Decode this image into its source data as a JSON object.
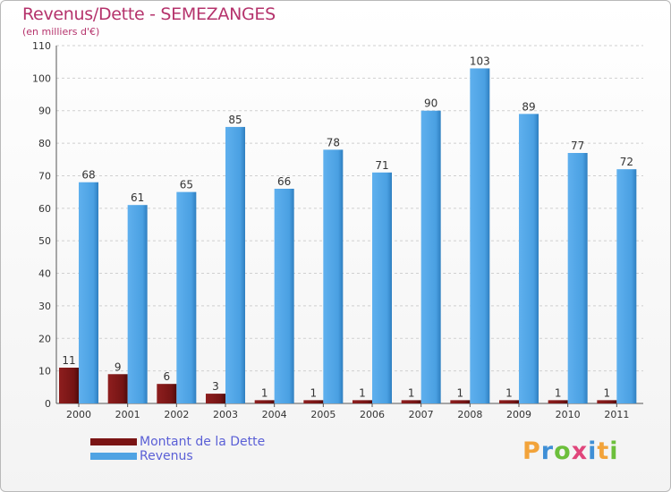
{
  "chart_data": {
    "type": "bar",
    "title": "Revenus/Dette - SEMEZANGES",
    "subtitle": "(en milliers d'€)",
    "categories": [
      "2000",
      "2001",
      "2002",
      "2003",
      "2004",
      "2005",
      "2006",
      "2007",
      "2008",
      "2009",
      "2010",
      "2011"
    ],
    "series": [
      {
        "name": "Montant de la Dette",
        "color": "#7a1414",
        "values": [
          11,
          9,
          6,
          3,
          1,
          1,
          1,
          1,
          1,
          1,
          1,
          1
        ]
      },
      {
        "name": "Revenus",
        "color": "#4fa3e3",
        "values": [
          68,
          61,
          65,
          85,
          66,
          78,
          71,
          90,
          103,
          89,
          77,
          72
        ]
      }
    ],
    "ylim": [
      0,
      110
    ],
    "yticks": [
      0,
      10,
      20,
      30,
      40,
      50,
      60,
      70,
      80,
      90,
      100,
      110
    ],
    "grid": true,
    "legend_position": "bottom-left"
  },
  "logo": {
    "letters": [
      "P",
      "r",
      "o",
      "x",
      "i",
      "t",
      "i"
    ],
    "colors": [
      "#f2a33a",
      "#3f8fd6",
      "#6cbf3b",
      "#e0457b",
      "#3f8fd6",
      "#f2a33a",
      "#6cbf3b"
    ]
  }
}
